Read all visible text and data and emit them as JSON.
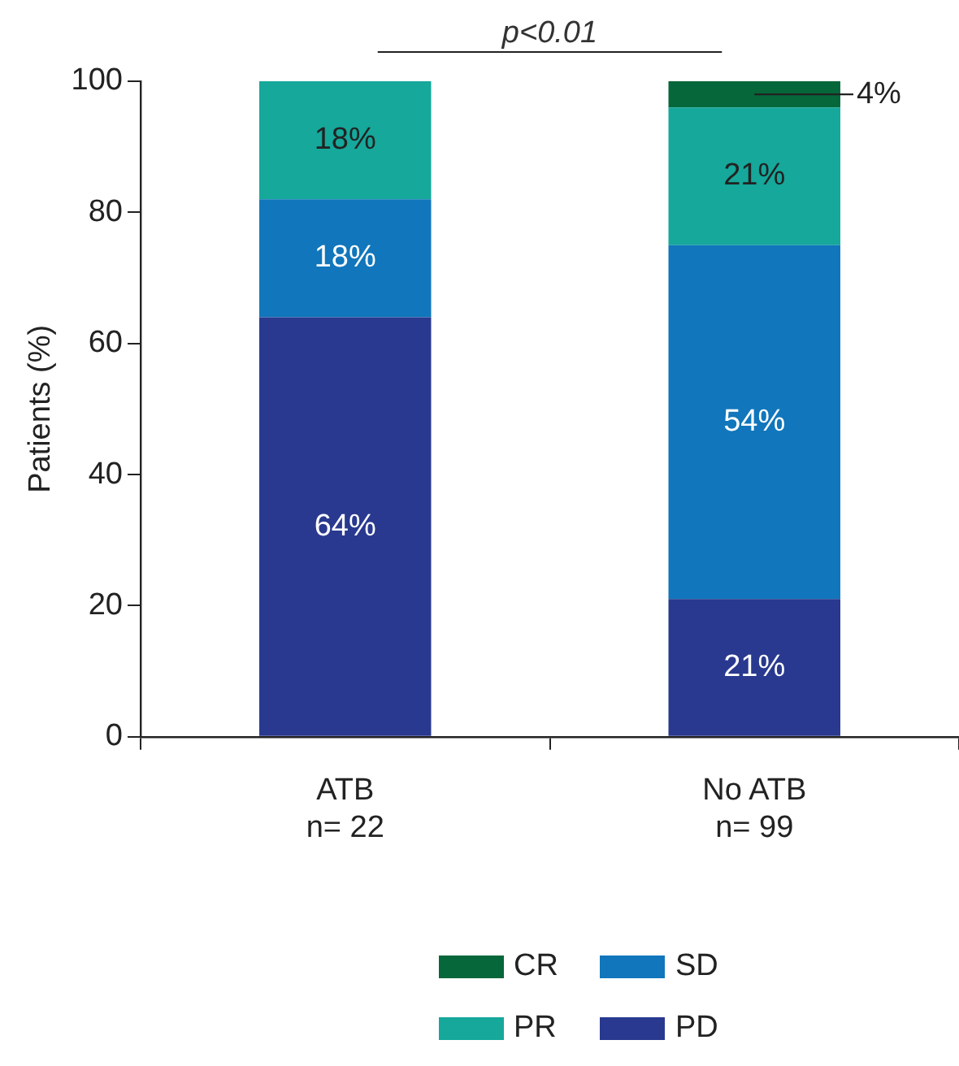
{
  "chart_data": {
    "type": "bar",
    "stacked": true,
    "ylabel": "Patients (%)",
    "categories": [
      "ATB\nn= 22",
      "No ATB\nn= 99"
    ],
    "series": [
      {
        "name": "PD",
        "color": "#29398f",
        "values": [
          64,
          21
        ],
        "value_labels": [
          "64%",
          "21%"
        ]
      },
      {
        "name": "SD",
        "color": "#1176bb",
        "values": [
          18,
          54
        ],
        "value_labels": [
          "18%",
          "54%"
        ]
      },
      {
        "name": "PR",
        "color": "#15a89b",
        "values": [
          18,
          21
        ],
        "value_labels": [
          "18%",
          "21%"
        ]
      },
      {
        "name": "CR",
        "color": "#05673a",
        "values": [
          null,
          4
        ],
        "value_labels": [
          null,
          "4%"
        ]
      }
    ],
    "ylim": [
      0,
      100
    ],
    "yticks": [
      0,
      20,
      40,
      60,
      80,
      100
    ],
    "grid": false,
    "legend": "bottom",
    "annotations": [
      "p<0.01"
    ]
  }
}
